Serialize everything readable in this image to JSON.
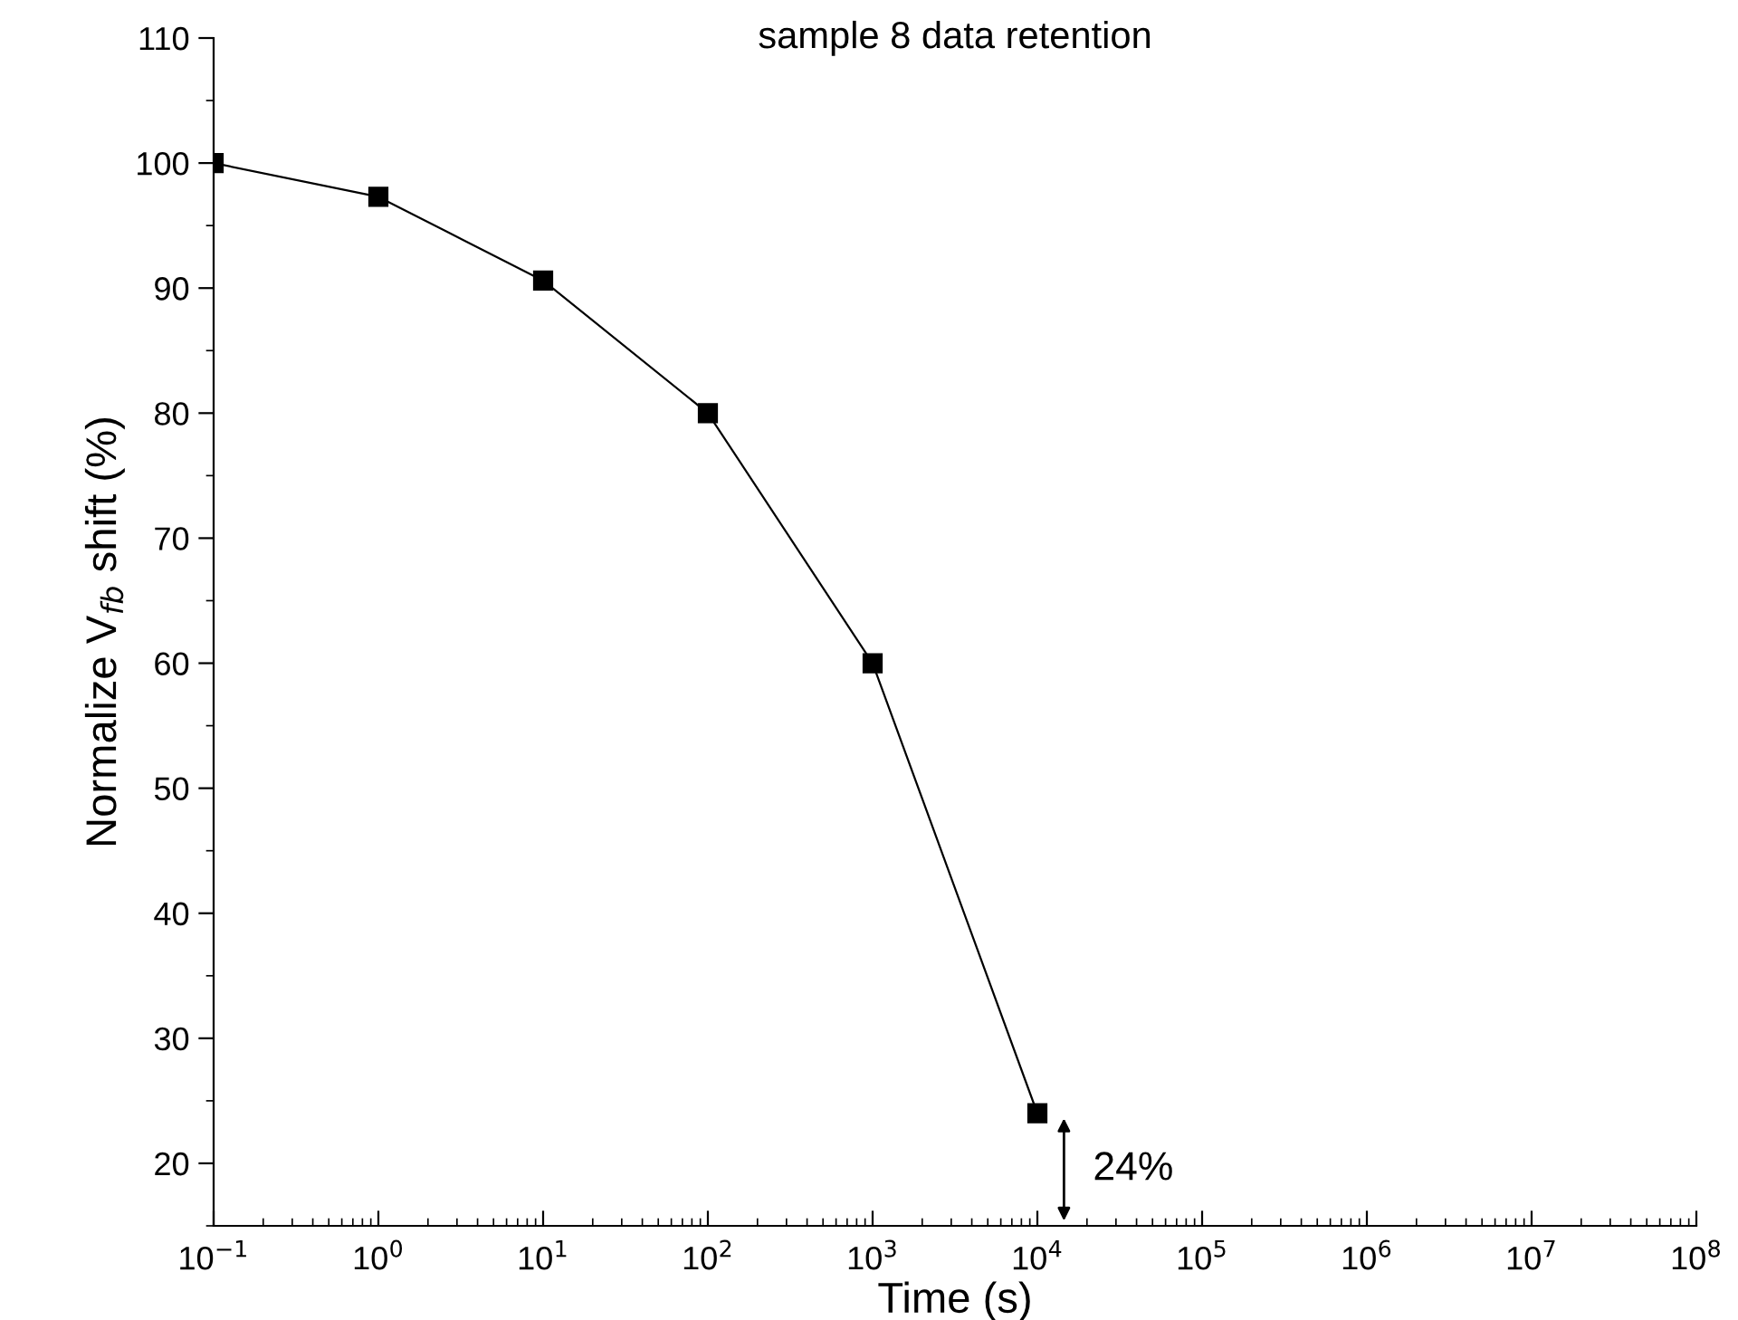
{
  "chart_data": {
    "type": "line",
    "title": "sample 8 data retention",
    "xlabel": "Time (s)",
    "ylabel": "Normalize V$_{fb}$ shift (%)",
    "x": [
      0.1,
      1,
      10,
      100,
      1000,
      10000
    ],
    "series": [
      {
        "color": "#000000",
        "values": [
          100,
          97.3,
          90.6,
          80,
          60,
          24
        ]
      }
    ],
    "marker": "square",
    "line_style": "solid",
    "log": "x",
    "grid": false,
    "legend": false,
    "xlim": [
      0.1,
      100000000
    ],
    "xticks": [
      {
        "value": 0.1,
        "label": "10$^{−1}$"
      },
      {
        "value": 1,
        "label": "10$^{0}$"
      },
      {
        "value": 10,
        "label": "10$^{1}$"
      },
      {
        "value": 100,
        "label": "10$^{2}$"
      },
      {
        "value": 1000,
        "label": "10$^{3}$"
      },
      {
        "value": 10000,
        "label": "10$^{4}$"
      },
      {
        "value": 100000,
        "label": "10$^{5}$"
      },
      {
        "value": 1000000,
        "label": "10$^{6}$"
      },
      {
        "value": 10000000,
        "label": "10$^{7}$"
      },
      {
        "value": 100000000,
        "label": "10$^{8}$"
      }
    ],
    "ylim": [
      15,
      110
    ],
    "yticks": [
      20,
      30,
      40,
      50,
      60,
      70,
      80,
      90,
      100,
      110
    ],
    "annotations": [
      {
        "text": "24%",
        "x": 10000,
        "y": 24
      }
    ]
  }
}
